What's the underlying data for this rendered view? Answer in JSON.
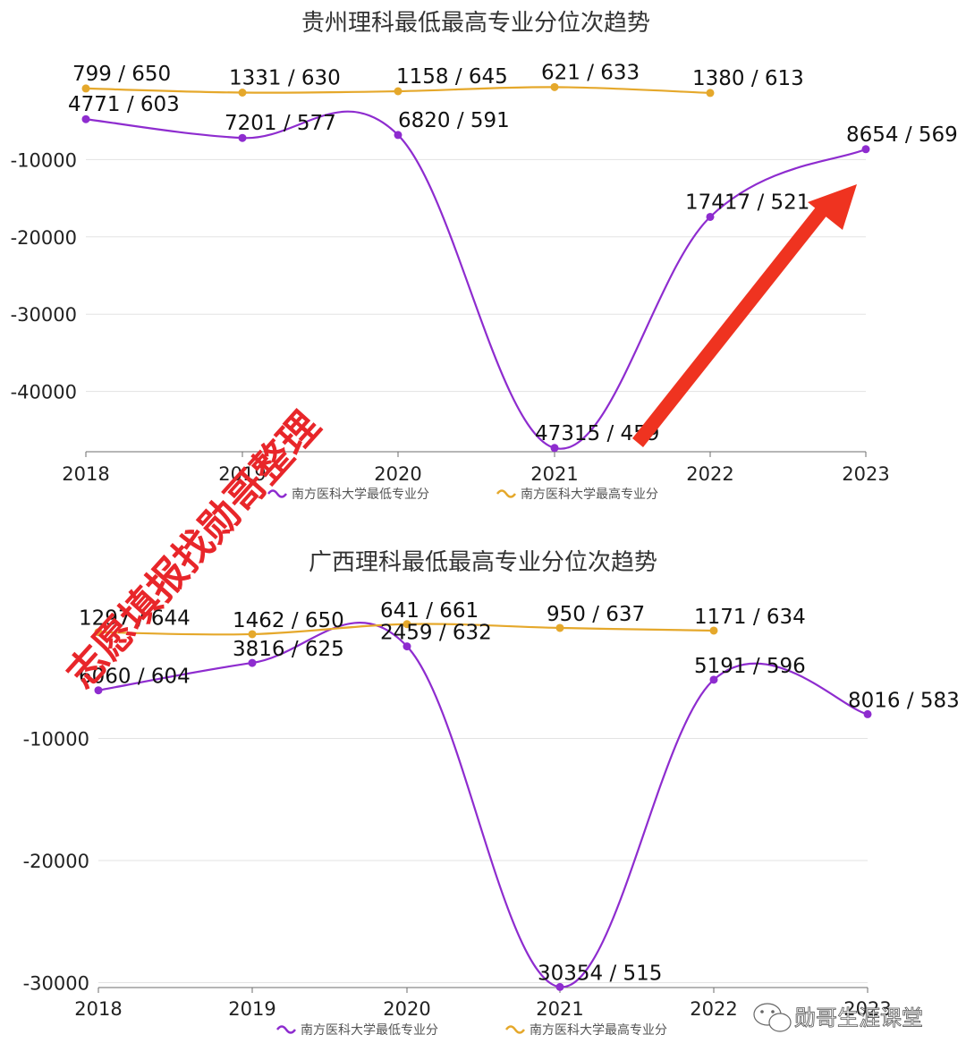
{
  "chart_data": [
    {
      "type": "line",
      "title": "贵州理科最低最高专业分位次趋势",
      "categories": [
        "2018",
        "2019",
        "2020",
        "2021",
        "2022",
        "2023"
      ],
      "y_ticks": [
        -10000,
        -20000,
        -30000,
        -40000
      ],
      "ylim": [
        -47800,
        0
      ],
      "grid": true,
      "legend_position": "bottom",
      "series": [
        {
          "name": "南方医科大学最低专业分",
          "color": "#8e2ccf",
          "values": [
            -4771,
            -7201,
            -6820,
            -47315,
            -17417,
            -8654
          ],
          "labels": [
            "4771 / 603",
            "7201 / 577",
            "6820 / 591",
            "47315 / 459",
            "17417 / 521",
            "8654 / 569"
          ]
        },
        {
          "name": "南方医科大学最高专业分",
          "color": "#e5a82b",
          "values": [
            -799,
            -1331,
            -1158,
            -621,
            -1380,
            null
          ],
          "labels": [
            "799 / 650",
            "1331 / 630",
            "1158 / 645",
            "621 / 633",
            "1380 / 613",
            ""
          ]
        }
      ],
      "annotations": [
        {
          "type": "arrow",
          "color": "#ef3320",
          "direction": "up-right",
          "from_category": "2021",
          "to_category": "2023"
        }
      ]
    },
    {
      "type": "line",
      "title": "广西理科最低最高专业分位次趋势",
      "categories": [
        "2018",
        "2019",
        "2020",
        "2021",
        "2022",
        "2023"
      ],
      "y_ticks": [
        -10000,
        -20000,
        -30000
      ],
      "ylim": [
        -30400,
        0
      ],
      "grid": true,
      "legend_position": "bottom",
      "series": [
        {
          "name": "南方医科大学最低专业分",
          "color": "#8e2ccf",
          "values": [
            -6060,
            -3816,
            -2459,
            -30354,
            -5191,
            -8016
          ],
          "labels": [
            "6060 / 604",
            "3816 / 625",
            "2459 / 632",
            "30354 / 515",
            "5191 / 596",
            "8016 / 583"
          ]
        },
        {
          "name": "南方医科大学最高专业分",
          "color": "#e5a82b",
          "values": [
            -1297,
            -1462,
            -641,
            -950,
            -1171,
            null
          ],
          "labels": [
            "1297 / 644",
            "1462 / 650",
            "641 / 661",
            "950 / 637",
            "1171 / 634",
            ""
          ]
        }
      ]
    }
  ],
  "watermark": "志愿填报找勋哥整理",
  "brand": {
    "name": "勋哥生涯课堂",
    "icon": "wechat-icon"
  }
}
